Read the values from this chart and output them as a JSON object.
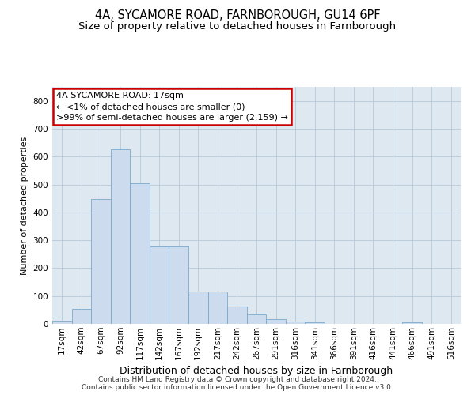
{
  "title1": "4A, SYCAMORE ROAD, FARNBOROUGH, GU14 6PF",
  "title2": "Size of property relative to detached houses in Farnborough",
  "xlabel": "Distribution of detached houses by size in Farnborough",
  "ylabel": "Number of detached properties",
  "bar_color": "#ccdcee",
  "bar_edge_color": "#7aaacb",
  "background_color": "#dde8f0",
  "annotation_text": "4A SYCAMORE ROAD: 17sqm\n← <1% of detached houses are smaller (0)\n>99% of semi-detached houses are larger (2,159) →",
  "annotation_box_color": "white",
  "annotation_box_edge_color": "#cc0000",
  "footer1": "Contains HM Land Registry data © Crown copyright and database right 2024.",
  "footer2": "Contains public sector information licensed under the Open Government Licence v3.0.",
  "categories": [
    "17sqm",
    "42sqm",
    "67sqm",
    "92sqm",
    "117sqm",
    "142sqm",
    "167sqm",
    "192sqm",
    "217sqm",
    "242sqm",
    "267sqm",
    "291sqm",
    "316sqm",
    "341sqm",
    "366sqm",
    "391sqm",
    "416sqm",
    "441sqm",
    "466sqm",
    "491sqm",
    "516sqm"
  ],
  "values": [
    10,
    55,
    448,
    625,
    505,
    278,
    278,
    115,
    115,
    62,
    35,
    18,
    8,
    5,
    0,
    0,
    0,
    0,
    5,
    0,
    0
  ],
  "ylim": [
    0,
    850
  ],
  "yticks": [
    0,
    100,
    200,
    300,
    400,
    500,
    600,
    700,
    800
  ],
  "title1_fontsize": 10.5,
  "title2_fontsize": 9.5,
  "annot_fontsize": 8.0,
  "tick_fontsize": 7.5,
  "ylabel_fontsize": 8.0,
  "xlabel_fontsize": 9.0,
  "footer_fontsize": 6.5
}
